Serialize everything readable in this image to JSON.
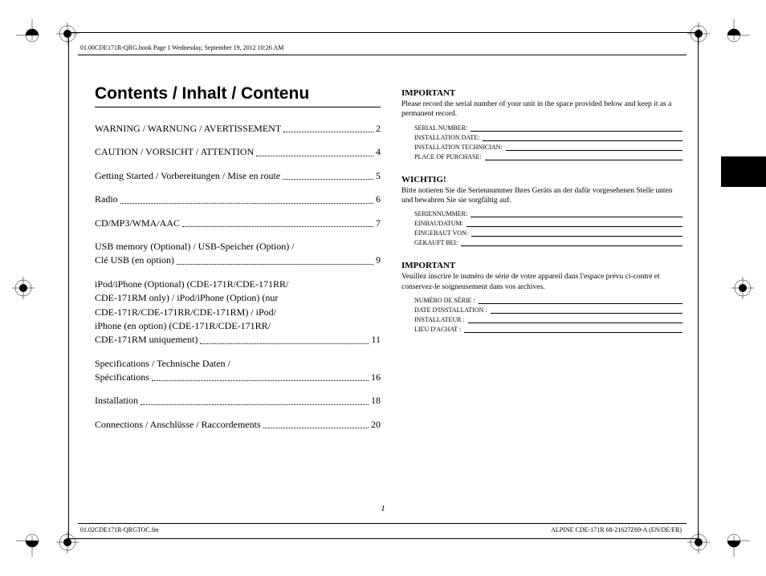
{
  "header": {
    "line": "01.00CDE171R-QRG.book  Page 1  Wednesday, September 19, 2012  10:26 AM"
  },
  "footer": {
    "left": "01.02CDE171R-QRGTOC.fm",
    "right": "ALPINE CDE-171R 68-21627Z69-A (EN/DE/FR)",
    "page_number": "1"
  },
  "title": "Contents / Inhalt / Contenu",
  "toc": [
    {
      "label": "WARNING / WARNUNG / AVERTISSEMENT",
      "page": "2"
    },
    {
      "label": "CAUTION / VORSICHT / ATTENTION",
      "page": "4"
    },
    {
      "label": "Getting Started / Vorbereitungen / Mise en route",
      "page": "5"
    },
    {
      "label": "Radio",
      "page": "6"
    },
    {
      "label": "CD/MP3/WMA/AAC",
      "page": "7"
    },
    {
      "label_lines": [
        "USB memory (Optional) / USB-Speicher (Option) /"
      ],
      "last": "Clé USB (en option)",
      "page": "9"
    },
    {
      "label_lines": [
        "iPod/iPhone (Optional) (CDE-171R/CDE-171RR/",
        "CDE-171RM only) / iPod/iPhone (Option) (nur",
        "CDE-171R/CDE-171RR/CDE-171RM) / iPod/",
        "iPhone (en option) (CDE-171R/CDE-171RR/"
      ],
      "last": "CDE-171RM uniquement)",
      "page": "11"
    },
    {
      "label_lines": [
        "Specifications / Technische Daten /"
      ],
      "last": "Spécifications",
      "page": "16"
    },
    {
      "label": "Installation",
      "page": "18"
    },
    {
      "label": "Connections / Anschlüsse / Raccordements",
      "page": "20"
    }
  ],
  "important_blocks": [
    {
      "heading": "IMPORTANT",
      "text": "Please record the serial number of your unit in the space provided below and keep it as a permanent record.",
      "fields": [
        "SERIAL NUMBER:",
        "INSTALLATION DATE:",
        "INSTALLATION TECHNICIAN:",
        "PLACE OF PURCHASE:"
      ]
    },
    {
      "heading": "WICHTIG!",
      "text": "Bitte notieren Sie die Seriennummer Ihres Geräts an der dafür vorgesehenen Stelle unten und bewahren Sie sie sorgfältig auf.",
      "fields": [
        "SERIENNUMMER:",
        "EINBAUDATUM:",
        "EINGEBAUT VON:",
        "GEKAUFT BEI:"
      ]
    },
    {
      "heading": "IMPORTANT",
      "text": "Veuillez inscrire le numéro de série de votre appareil dans l'espace prévu ci-contre et conservez-le soigneusement dans vos archives.",
      "fields": [
        "NUMÉRO DE SÉRIE :",
        "DATE D'INSTALLATION :",
        "INSTALLATEUR :",
        "LIEU D'ACHAT :"
      ]
    }
  ]
}
